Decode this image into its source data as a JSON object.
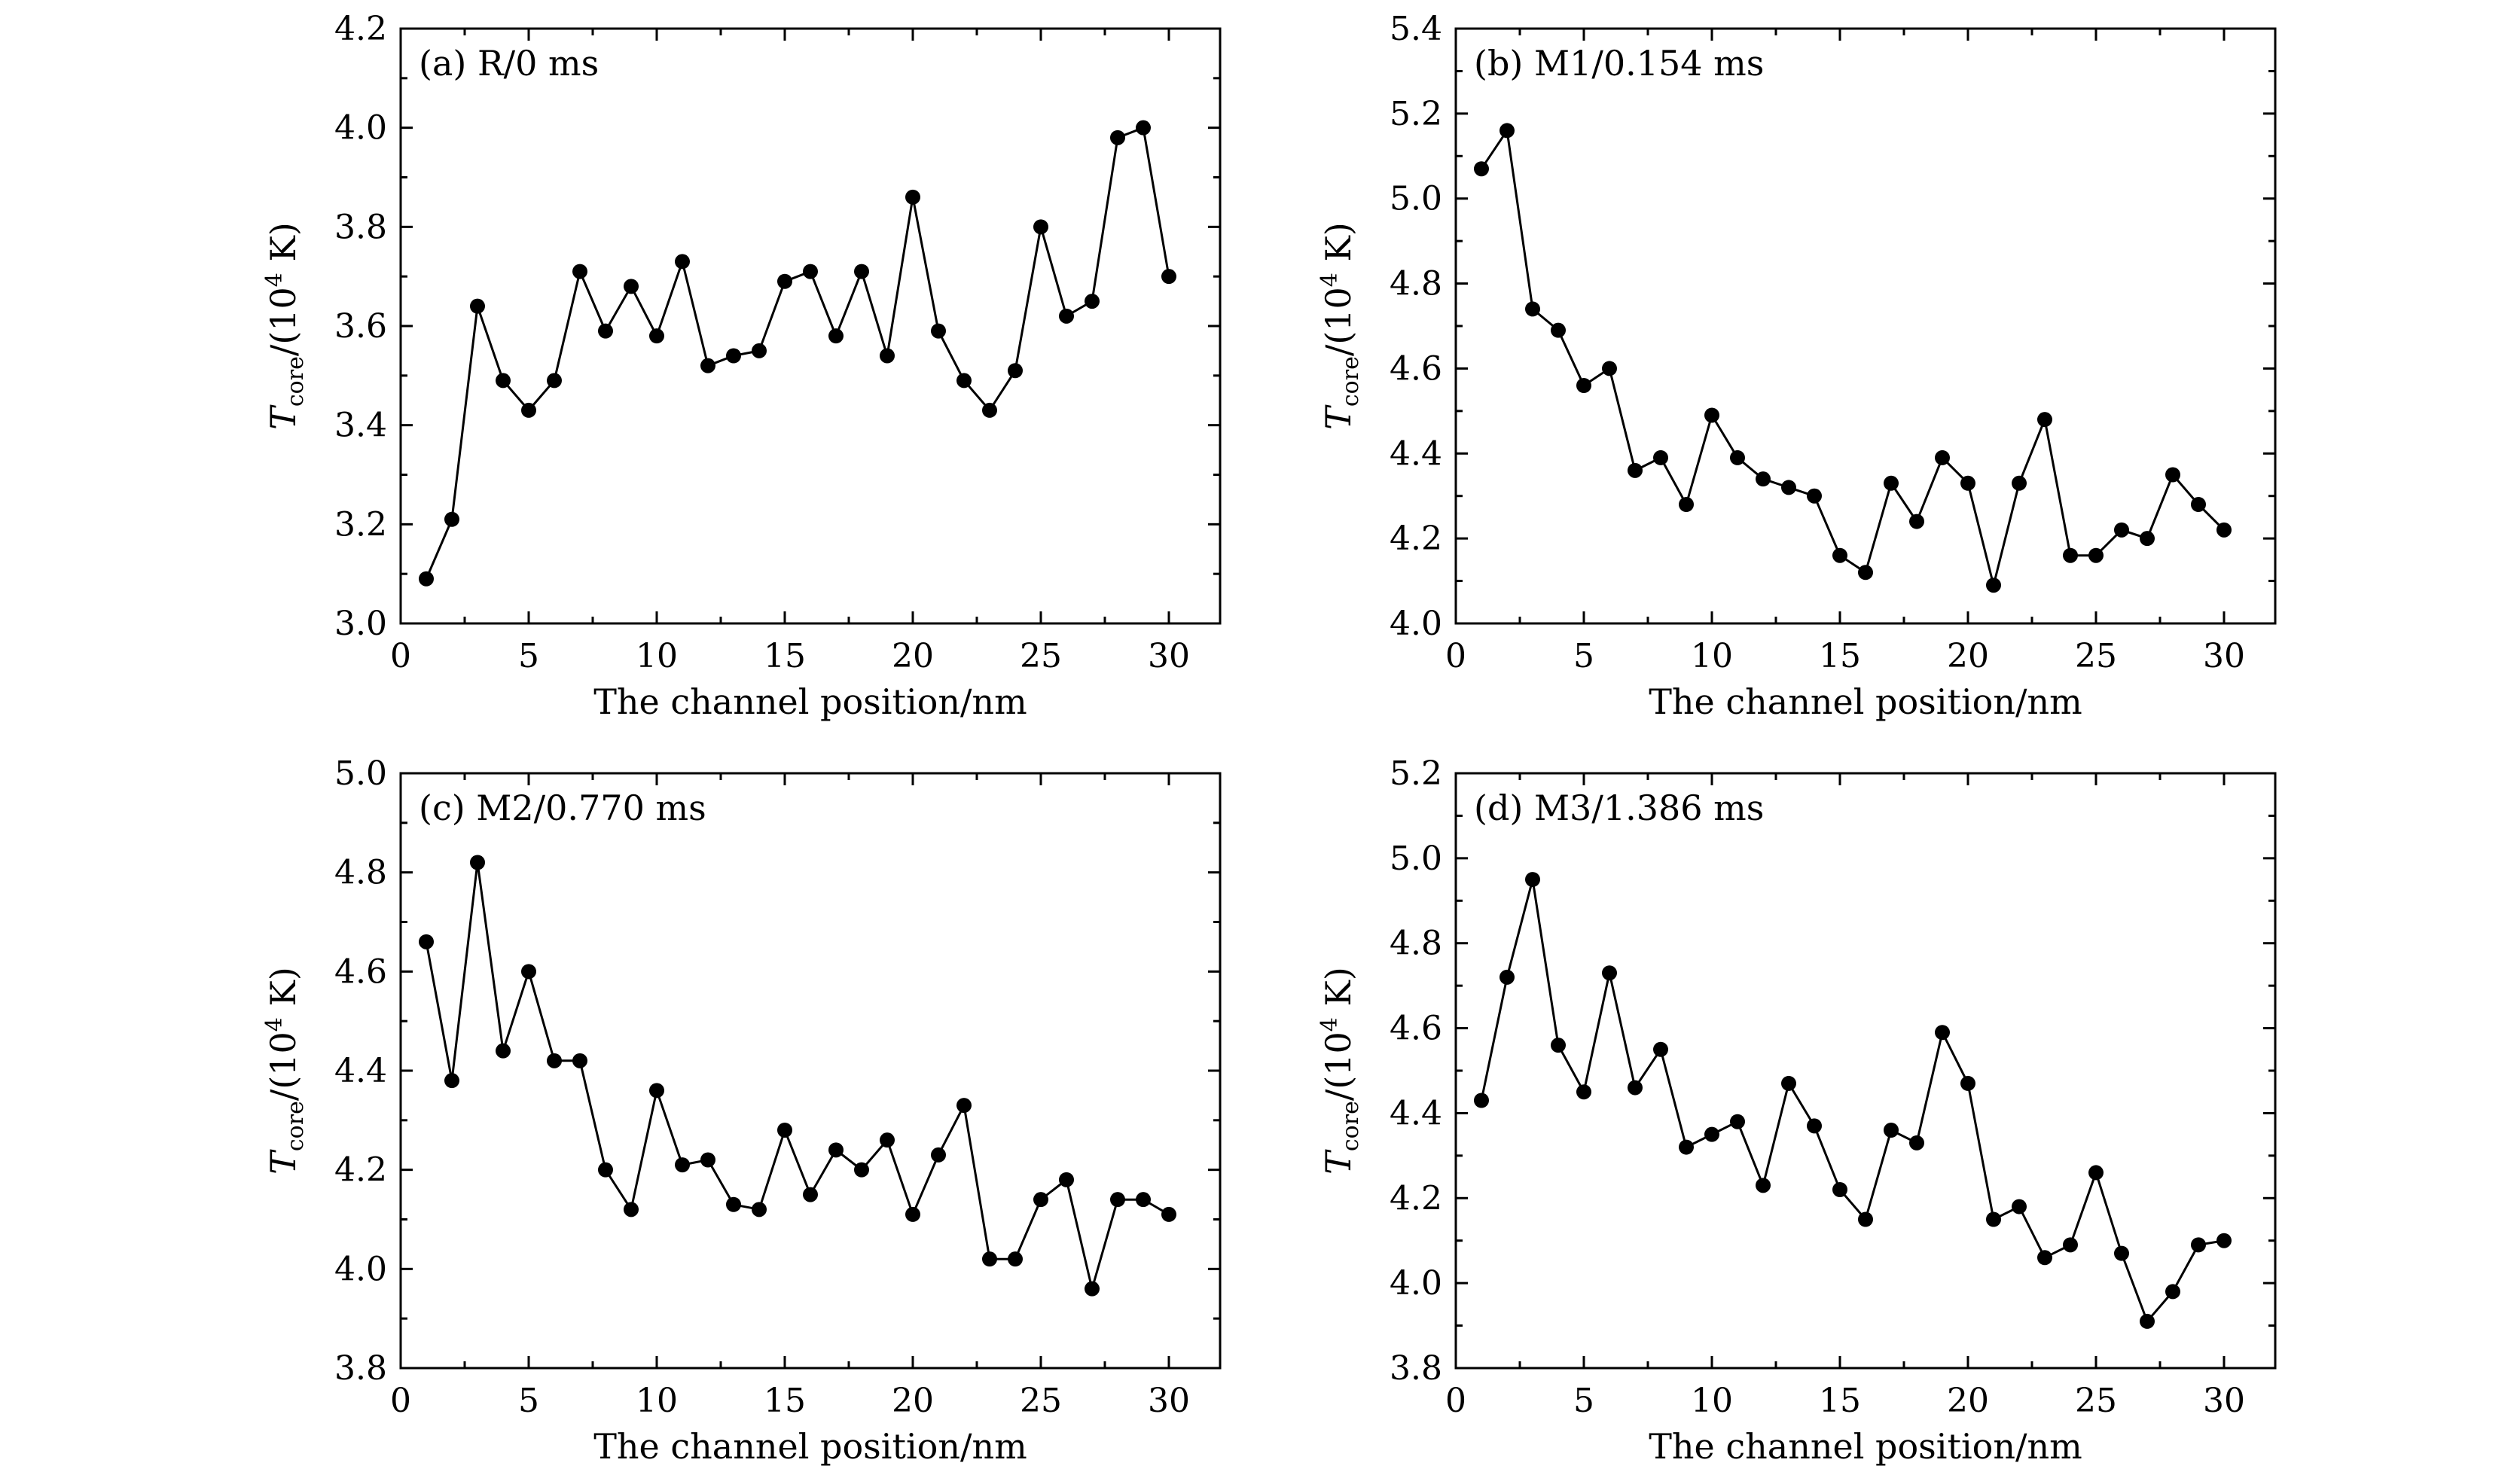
{
  "chart_data": [
    {
      "type": "line",
      "title": "(a) R/0 ms",
      "xlabel": "The channel position/nm",
      "ylabel": {
        "main": "T",
        "sub": "core",
        "rest": "/(10",
        "sup": "4",
        "end": " K)"
      },
      "xlim": [
        0,
        32
      ],
      "ylim": [
        3.0,
        4.2
      ],
      "xticks": [
        0,
        5,
        10,
        15,
        20,
        25,
        30
      ],
      "xtick_labels": [
        "0",
        "5",
        "10",
        "15",
        "20",
        "25",
        "30"
      ],
      "yticks": [
        3.0,
        3.2,
        3.4,
        3.6,
        3.8,
        4.0,
        4.2
      ],
      "ytick_labels": [
        "3.0",
        "3.2",
        "3.4",
        "3.6",
        "3.8",
        "4.0",
        "4.2"
      ],
      "grid": false,
      "x": [
        1,
        2,
        3,
        4,
        5,
        6,
        7,
        8,
        9,
        10,
        11,
        12,
        13,
        14,
        15,
        16,
        17,
        18,
        19,
        20,
        21,
        22,
        23,
        24,
        25,
        26,
        27,
        28,
        29,
        30
      ],
      "series": [
        {
          "values": [
            3.09,
            3.21,
            3.64,
            3.49,
            3.43,
            3.49,
            3.71,
            3.59,
            3.68,
            3.58,
            3.73,
            3.52,
            3.54,
            3.55,
            3.69,
            3.71,
            3.58,
            3.71,
            3.54,
            3.86,
            3.59,
            3.49,
            3.43,
            3.51,
            3.8,
            3.62,
            3.65,
            3.98,
            4.0,
            3.7
          ]
        }
      ]
    },
    {
      "type": "line",
      "title": "(b) M1/0.154 ms",
      "xlabel": "The channel position/nm",
      "ylabel": {
        "main": "T",
        "sub": "core",
        "rest": "/(10",
        "sup": "4",
        "end": " K)"
      },
      "xlim": [
        0,
        32
      ],
      "ylim": [
        4.0,
        5.4
      ],
      "xticks": [
        0,
        5,
        10,
        15,
        20,
        25,
        30
      ],
      "xtick_labels": [
        "0",
        "5",
        "10",
        "15",
        "20",
        "25",
        "30"
      ],
      "yticks": [
        4.0,
        4.2,
        4.4,
        4.6,
        4.8,
        5.0,
        5.2,
        5.4
      ],
      "ytick_labels": [
        "4.0",
        "4.2",
        "4.4",
        "4.6",
        "4.8",
        "5.0",
        "5.2",
        "5.4"
      ],
      "grid": false,
      "x": [
        1,
        2,
        3,
        4,
        5,
        6,
        7,
        8,
        9,
        10,
        11,
        12,
        13,
        14,
        15,
        16,
        17,
        18,
        19,
        20,
        21,
        22,
        23,
        24,
        25,
        26,
        27,
        28,
        29,
        30
      ],
      "series": [
        {
          "values": [
            5.07,
            5.16,
            4.74,
            4.69,
            4.56,
            4.6,
            4.36,
            4.39,
            4.28,
            4.49,
            4.39,
            4.34,
            4.32,
            4.3,
            4.16,
            4.12,
            4.33,
            4.24,
            4.39,
            4.33,
            4.09,
            4.33,
            4.48,
            4.16,
            4.16,
            4.22,
            4.2,
            4.35,
            4.28,
            4.22
          ]
        }
      ]
    },
    {
      "type": "line",
      "title": "(c) M2/0.770 ms",
      "xlabel": "The channel position/nm",
      "ylabel": {
        "main": "T",
        "sub": "core",
        "rest": "/(10",
        "sup": "4",
        "end": " K)"
      },
      "xlim": [
        0,
        32
      ],
      "ylim": [
        3.8,
        5.0
      ],
      "xticks": [
        0,
        5,
        10,
        15,
        20,
        25,
        30
      ],
      "xtick_labels": [
        "0",
        "5",
        "10",
        "15",
        "20",
        "25",
        "30"
      ],
      "yticks": [
        3.8,
        4.0,
        4.2,
        4.4,
        4.6,
        4.8,
        5.0
      ],
      "ytick_labels": [
        "3.8",
        "4.0",
        "4.2",
        "4.4",
        "4.6",
        "4.8",
        "5.0"
      ],
      "grid": false,
      "x": [
        1,
        2,
        3,
        4,
        5,
        6,
        7,
        8,
        9,
        10,
        11,
        12,
        13,
        14,
        15,
        16,
        17,
        18,
        19,
        20,
        21,
        22,
        23,
        24,
        25,
        26,
        27,
        28,
        29,
        30
      ],
      "series": [
        {
          "values": [
            4.66,
            4.38,
            4.82,
            4.44,
            4.6,
            4.42,
            4.42,
            4.2,
            4.12,
            4.36,
            4.21,
            4.22,
            4.13,
            4.12,
            4.28,
            4.15,
            4.24,
            4.2,
            4.26,
            4.11,
            4.23,
            4.33,
            4.02,
            4.02,
            4.14,
            4.18,
            3.96,
            4.14,
            4.14,
            4.11
          ]
        }
      ]
    },
    {
      "type": "line",
      "title": "(d) M3/1.386 ms",
      "xlabel": "The channel position/nm",
      "ylabel": {
        "main": "T",
        "sub": "core",
        "rest": "/(10",
        "sup": "4",
        "end": " K)"
      },
      "xlim": [
        0,
        32
      ],
      "ylim": [
        3.8,
        5.2
      ],
      "xticks": [
        0,
        5,
        10,
        15,
        20,
        25,
        30
      ],
      "xtick_labels": [
        "0",
        "5",
        "10",
        "15",
        "20",
        "25",
        "30"
      ],
      "yticks": [
        3.8,
        4.0,
        4.2,
        4.4,
        4.6,
        4.8,
        5.0,
        5.2
      ],
      "ytick_labels": [
        "3.8",
        "4.0",
        "4.2",
        "4.4",
        "4.6",
        "4.8",
        "5.0",
        "5.2"
      ],
      "grid": false,
      "x": [
        1,
        2,
        3,
        4,
        5,
        6,
        7,
        8,
        9,
        10,
        11,
        12,
        13,
        14,
        15,
        16,
        17,
        18,
        19,
        20,
        21,
        22,
        23,
        24,
        25,
        26,
        27,
        28,
        29,
        30
      ],
      "series": [
        {
          "values": [
            4.43,
            4.72,
            4.95,
            4.56,
            4.45,
            4.73,
            4.46,
            4.55,
            4.32,
            4.35,
            4.38,
            4.23,
            4.47,
            4.37,
            4.22,
            4.15,
            4.36,
            4.33,
            4.59,
            4.47,
            4.15,
            4.18,
            4.06,
            4.09,
            4.26,
            4.07,
            3.91,
            3.98,
            4.09,
            4.1
          ]
        }
      ]
    }
  ]
}
